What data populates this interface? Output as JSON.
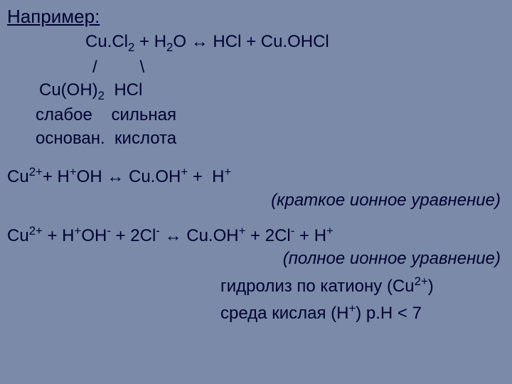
{
  "colors": {
    "background": "#7a8aa8",
    "text": "#000033"
  },
  "typography": {
    "font_family": "Arial, sans-serif",
    "base_fontsize": 24,
    "title_fontsize": 26,
    "line_height": 1.35
  },
  "title": "Например:",
  "equation_main": "Cu.Cl₂ + H₂O ↔ HCl + Cu.OHCl",
  "slashes": "/         \\",
  "branch_left": "Cu(OH)₂",
  "branch_right": "HCl",
  "desc_left": "слабое",
  "desc_right": "сильная",
  "desc2_left": "основан.",
  "desc2_right": "кислота",
  "ionic_short_lhs": "Cu²⁺+ H⁺OH ↔ Cu.OH⁺ +  H⁺",
  "ionic_short_note": "(краткое ионное уравнение)",
  "ionic_full_lhs": "Cu²⁺ + H⁺OH⁻ + 2Cl⁻ ↔ Cu.OH⁺ + 2Cl⁻ + H⁺",
  "ionic_full_note": "(полное ионное уравнение)",
  "result1": "гидролиз по катиону (Cu²⁺)",
  "result2": "среда кислая (H⁺) p.H < 7"
}
